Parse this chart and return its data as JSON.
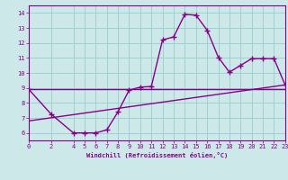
{
  "xlabel": "Windchill (Refroidissement éolien,°C)",
  "ylabel": "",
  "bg_color": "#cce8e8",
  "line_color": "#880088",
  "grid_color": "#99cccc",
  "xlim": [
    0,
    23
  ],
  "ylim": [
    5.5,
    14.5
  ],
  "xticks": [
    0,
    2,
    4,
    5,
    6,
    7,
    8,
    9,
    10,
    11,
    12,
    13,
    14,
    15,
    16,
    17,
    18,
    19,
    20,
    21,
    22,
    23
  ],
  "yticks": [
    6,
    7,
    8,
    9,
    10,
    11,
    12,
    13,
    14
  ],
  "line1_x": [
    0,
    2,
    4,
    5,
    6,
    7,
    8,
    9,
    10,
    11,
    12,
    13,
    14,
    15,
    16,
    17,
    18,
    19,
    20,
    21,
    22,
    23
  ],
  "line1_y": [
    8.9,
    7.25,
    6.0,
    6.0,
    6.0,
    6.2,
    7.4,
    8.85,
    9.05,
    9.1,
    12.2,
    12.4,
    13.9,
    13.85,
    12.85,
    11.05,
    10.05,
    10.5,
    10.95,
    10.95,
    10.95,
    9.2
  ],
  "line2_x": [
    0,
    23
  ],
  "line2_y": [
    8.9,
    8.9
  ],
  "line3_x": [
    0,
    23
  ],
  "line3_y": [
    6.8,
    9.2
  ],
  "linewidth": 1.0
}
